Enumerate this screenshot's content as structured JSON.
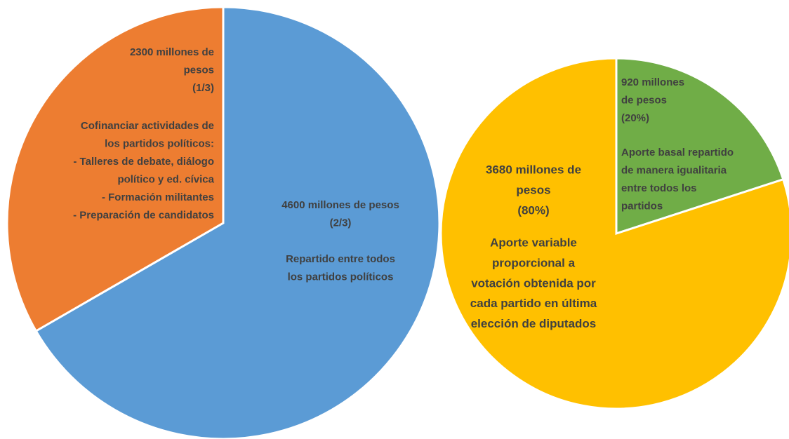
{
  "chart_data": [
    {
      "type": "pie",
      "values": [
        4600,
        2300
      ],
      "colors": [
        "#5b9bd5",
        "#ed7d31"
      ],
      "labels": [
        {
          "amount": [
            "4600 millones de pesos",
            "(2/3)"
          ],
          "description": [
            "Repartido entre todos",
            "los partidos políticos"
          ]
        },
        {
          "amount": [
            "2300 millones de",
            "pesos",
            "(1/3)"
          ],
          "description": [
            "Cofinanciar actividades de",
            "los partidos políticos:",
            "- Talleres de debate, diálogo",
            "político y ed. cívica",
            "- Formación militantes",
            "- Preparación de candidatos"
          ]
        }
      ]
    },
    {
      "type": "pie",
      "values": [
        920,
        3680
      ],
      "colors": [
        "#70ad47",
        "#ffc000"
      ],
      "labels": [
        {
          "amount": [
            "920 millones",
            "de pesos",
            "(20%)"
          ],
          "description": [
            "Aporte basal repartido",
            "de manera igualitaria",
            "entre todos los",
            "partidos"
          ]
        },
        {
          "amount": [
            "3680 millones de",
            "pesos",
            "(80%)"
          ],
          "description": [
            "Aporte variable",
            "proporcional a",
            "votación obtenida por",
            "cada partido en última",
            "elección de diputados"
          ]
        }
      ]
    }
  ]
}
